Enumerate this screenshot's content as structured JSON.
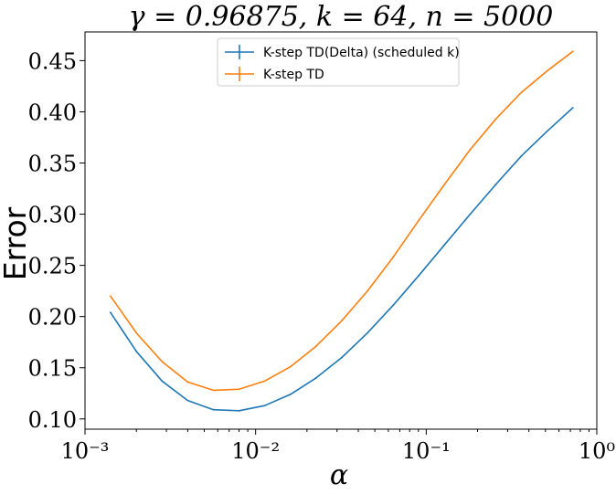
{
  "chart_data": {
    "type": "line",
    "title": "γ = 0.96875, k = 64, n = 5000",
    "xlabel": "α",
    "ylabel": "Error",
    "xscale": "log",
    "xlim": [
      0.001,
      1
    ],
    "ylim": [
      0.09,
      0.478
    ],
    "x_tick_labels": [
      "10⁻³",
      "10⁻²",
      "10⁻¹",
      "10⁰"
    ],
    "y_ticks": [
      0.1,
      0.15,
      0.2,
      0.25,
      0.3,
      0.35,
      0.4,
      0.45
    ],
    "y_tick_labels": [
      "0.10",
      "0.15",
      "0.20",
      "0.25",
      "0.30",
      "0.35",
      "0.40",
      "0.45"
    ],
    "legend_position": "top-center",
    "grid": false,
    "x": [
      0.00141,
      0.002,
      0.00283,
      0.004,
      0.00566,
      0.008,
      0.0113,
      0.016,
      0.0226,
      0.032,
      0.0453,
      0.064,
      0.0905,
      0.128,
      0.181,
      0.256,
      0.362,
      0.512,
      0.724
    ],
    "series": [
      {
        "name": "K-step TD(Delta) (scheduled k)",
        "color": "#1f77b4",
        "values": [
          0.204,
          0.166,
          0.137,
          0.118,
          0.109,
          0.108,
          0.113,
          0.124,
          0.14,
          0.16,
          0.184,
          0.211,
          0.24,
          0.27,
          0.3,
          0.329,
          0.357,
          0.381,
          0.404
        ]
      },
      {
        "name": "K-step TD",
        "color": "#ff7f0e",
        "values": [
          0.22,
          0.184,
          0.156,
          0.136,
          0.128,
          0.129,
          0.137,
          0.151,
          0.171,
          0.196,
          0.225,
          0.258,
          0.294,
          0.329,
          0.363,
          0.393,
          0.419,
          0.44,
          0.459
        ]
      }
    ]
  }
}
